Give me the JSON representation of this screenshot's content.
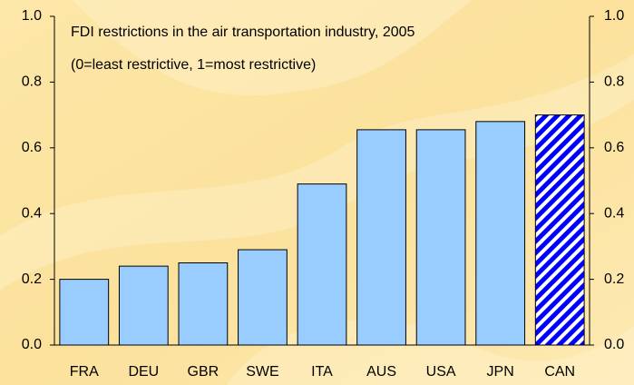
{
  "chart_data": {
    "type": "bar",
    "title": "FDI restrictions in the air transportation industry, 2005",
    "subtitle": "(0=least restrictive, 1=most restrictive)",
    "categories": [
      "FRA",
      "DEU",
      "GBR",
      "SWE",
      "ITA",
      "AUS",
      "USA",
      "JPN",
      "CAN"
    ],
    "values": [
      0.2,
      0.24,
      0.25,
      0.29,
      0.49,
      0.655,
      0.655,
      0.68,
      0.7
    ],
    "colors": [
      "#99ccff",
      "#99ccff",
      "#99ccff",
      "#99ccff",
      "#99ccff",
      "#99ccff",
      "#99ccff",
      "#99ccff",
      "#0000ff"
    ],
    "hatched": [
      false,
      false,
      false,
      false,
      false,
      false,
      false,
      false,
      true
    ],
    "ylim": [
      0,
      1
    ],
    "yticks": [
      {
        "value": 0,
        "label": "0.0"
      },
      0.2,
      0.4,
      0.6,
      0.8,
      {
        "value": 1,
        "label": "1.0"
      }
    ],
    "y2lim": [
      0,
      1
    ],
    "y2ticks": [
      {
        "value": 0,
        "label": "0.0"
      },
      0.2,
      0.4,
      0.6,
      0.8,
      {
        "value": 1,
        "label": "1.0"
      }
    ]
  }
}
